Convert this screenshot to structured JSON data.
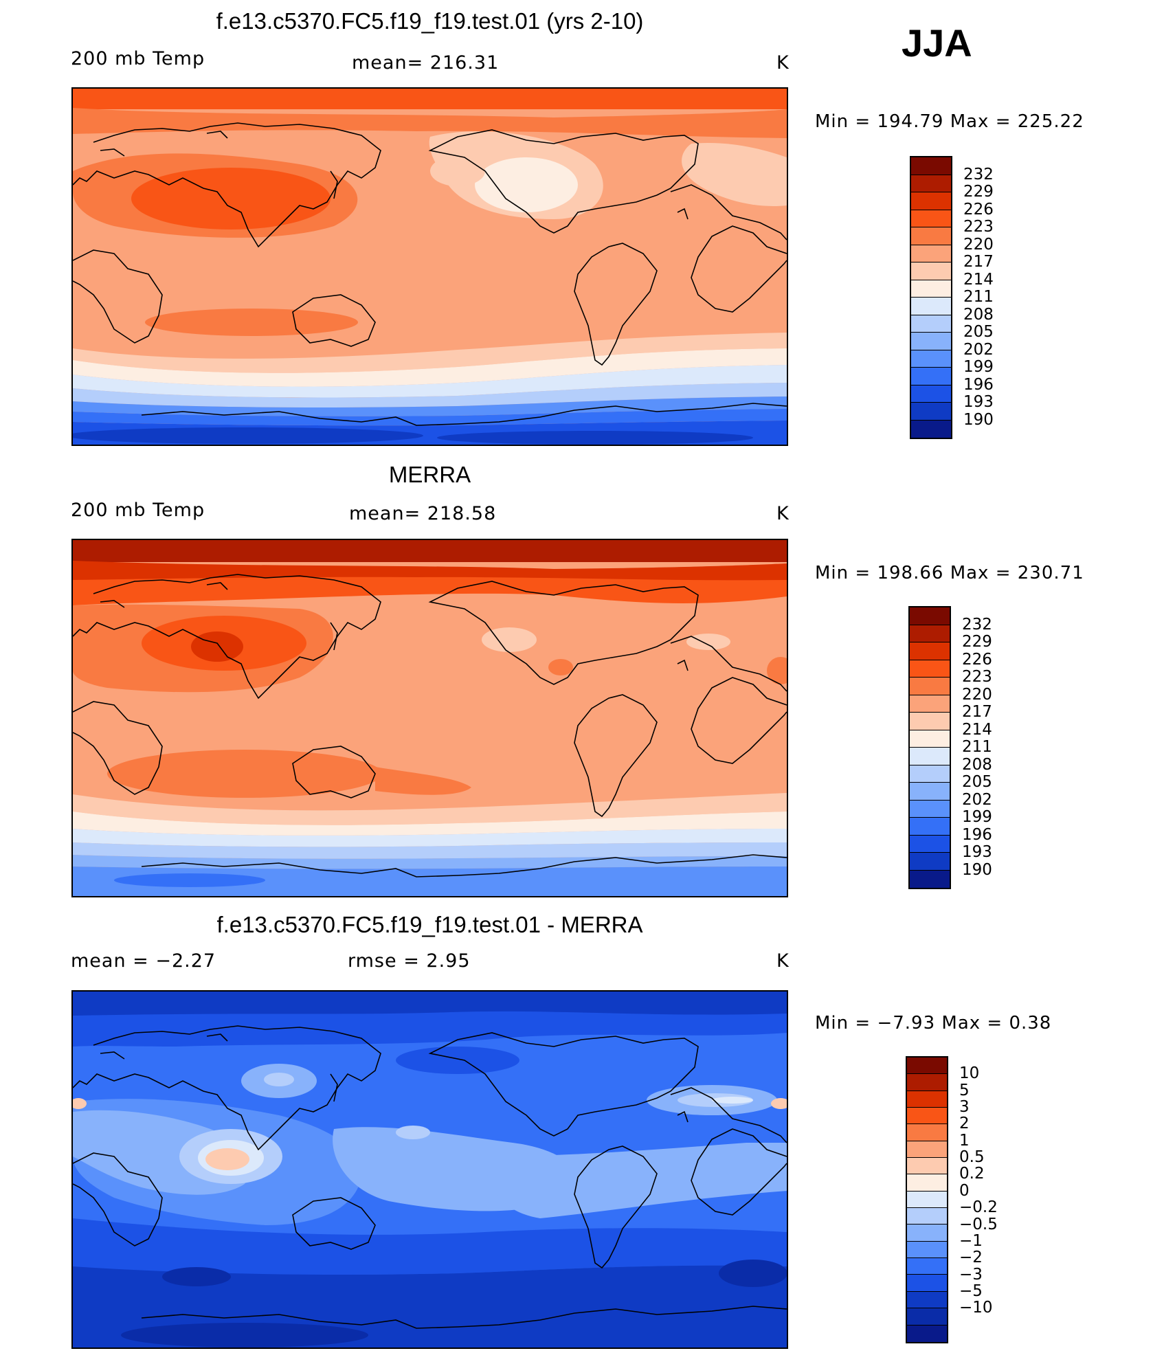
{
  "season": "JJA",
  "palette_abs": [
    "#7a0a00",
    "#ad1c00",
    "#dc3200",
    "#f95516",
    "#f97a42",
    "#fba37a",
    "#fdcbb0",
    "#fdeee2",
    "#dce9fb",
    "#b4cefb",
    "#88b2fb",
    "#5a91fb",
    "#3470f7",
    "#1c52e6",
    "#0f3bc4",
    "#091a8a"
  ],
  "palette_diff": [
    "#7a0a00",
    "#ad1c00",
    "#dc3200",
    "#f95516",
    "#f97a42",
    "#fba37a",
    "#fdcbb0",
    "#fdeee2",
    "#dce9fb",
    "#b4cefb",
    "#88b2fb",
    "#5a91fb",
    "#3470f7",
    "#1c52e6",
    "#0f3bc4",
    "#0a2ca8",
    "#091a8a"
  ],
  "panels": [
    {
      "title": "f.e13.c5370.FC5.f19_f19.test.01 (yrs 2-10)",
      "left": "200 mb Temp",
      "center": "mean= 216.31",
      "units": "K",
      "minmax": "Min = 194.79 Max = 225.22",
      "levels": [
        "232",
        "229",
        "226",
        "223",
        "220",
        "217",
        "214",
        "211",
        "208",
        "205",
        "202",
        "199",
        "196",
        "193",
        "190"
      ]
    },
    {
      "title": "MERRA",
      "left": "200 mb Temp",
      "center": "mean= 218.58",
      "units": "K",
      "minmax": "Min = 198.66 Max = 230.71",
      "levels": [
        "232",
        "229",
        "226",
        "223",
        "220",
        "217",
        "214",
        "211",
        "208",
        "205",
        "202",
        "199",
        "196",
        "193",
        "190"
      ]
    },
    {
      "title": "f.e13.c5370.FC5.f19_f19.test.01 - MERRA",
      "left": "mean =   −2.27",
      "center": "rmse =    2.95",
      "units": "K",
      "minmax": "Min =   −7.93 Max =    0.38",
      "levels": [
        "10",
        "5",
        "3",
        "2",
        "1",
        "0.5",
        "0.2",
        "0",
        "−0.2",
        "−0.5",
        "−1",
        "−2",
        "−3",
        "−5",
        "−10"
      ]
    }
  ]
}
